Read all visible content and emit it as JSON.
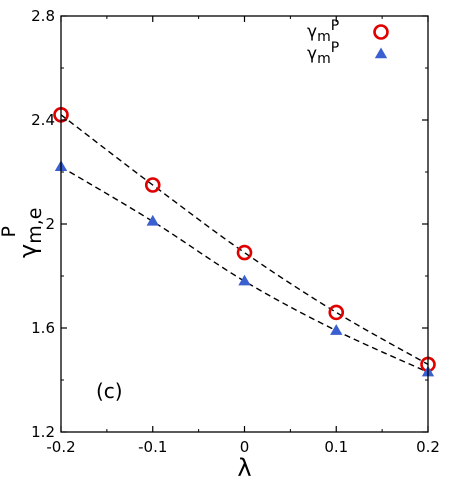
{
  "chart_data": {
    "type": "scatter",
    "xlabel": "λ",
    "ylabel": {
      "base": "γ",
      "sub": "m,e",
      "sup": "P"
    },
    "xlim": [
      -0.2,
      0.2
    ],
    "ylim": [
      1.2,
      2.8
    ],
    "x_ticks": [
      -0.2,
      -0.1,
      0,
      0.1,
      0.2
    ],
    "x_tick_labels": [
      "-0.2",
      "-0.1",
      "0",
      "0.1",
      "0.2"
    ],
    "y_ticks": [
      1.2,
      1.6,
      2.0,
      2.4,
      2.8
    ],
    "y_tick_labels": [
      "1.2",
      "1.6",
      "2",
      "2.4",
      "2.8"
    ],
    "annotation": "(c)",
    "grid": false,
    "legend_position": "top-right",
    "series": [
      {
        "legend": {
          "base": "γ",
          "sub": "m",
          "sup": "P"
        },
        "marker": "open-circle",
        "color": "#e00000",
        "x": [
          -0.2,
          -0.1,
          0.0,
          0.1,
          0.2
        ],
        "y": [
          2.42,
          2.15,
          1.89,
          1.66,
          1.46
        ],
        "fit_line": "dashed"
      },
      {
        "legend": {
          "base": "γ",
          "sub": "m",
          "sup": "P"
        },
        "marker": "filled-triangle",
        "color": "#3a5fd0",
        "x": [
          -0.2,
          -0.1,
          0.0,
          0.1,
          0.2
        ],
        "y": [
          2.22,
          2.01,
          1.78,
          1.59,
          1.43
        ],
        "fit_line": "dashed"
      }
    ]
  }
}
